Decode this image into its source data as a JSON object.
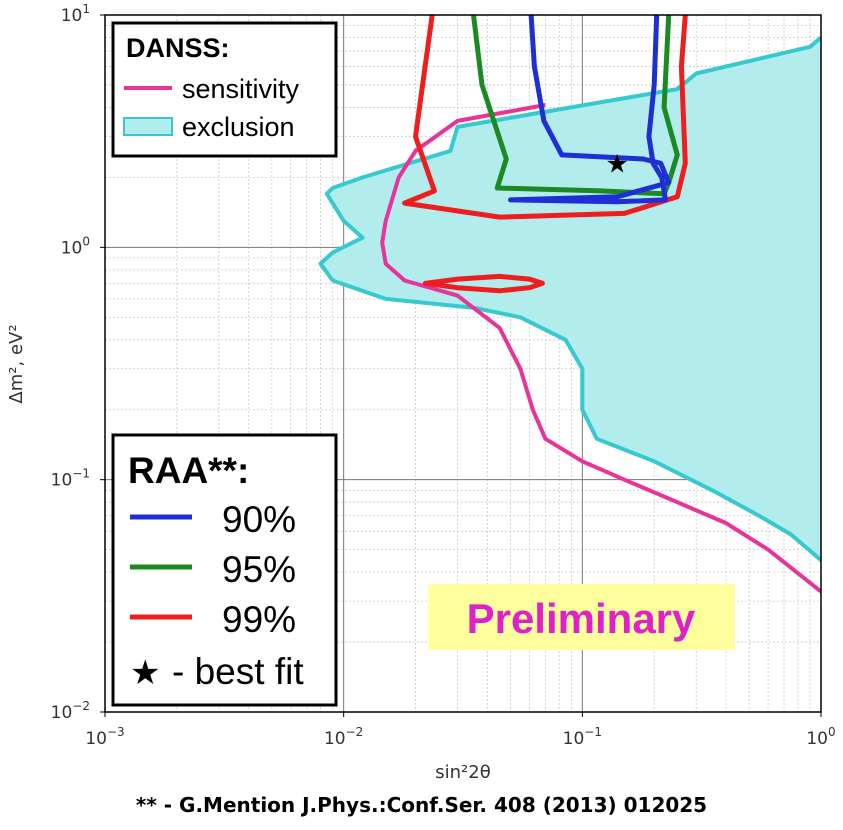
{
  "chart_data": {
    "type": "line",
    "xscale": "log",
    "yscale": "log",
    "xlim": [
      0.001,
      1
    ],
    "ylim": [
      0.01,
      10
    ],
    "xlabel": "sin²2θ",
    "ylabel": "Δm², eV²",
    "x_ticks": [
      {
        "value": 0.001,
        "base": "10",
        "exp": "−3"
      },
      {
        "value": 0.01,
        "base": "10",
        "exp": "−2"
      },
      {
        "value": 0.1,
        "base": "10",
        "exp": "−1"
      },
      {
        "value": 1,
        "base": "10",
        "exp": "0"
      }
    ],
    "y_ticks": [
      {
        "value": 0.01,
        "base": "10",
        "exp": "−2"
      },
      {
        "value": 0.1,
        "base": "10",
        "exp": "−1"
      },
      {
        "value": 1,
        "base": "10",
        "exp": "0"
      },
      {
        "value": 10,
        "base": "10",
        "exp": "1"
      }
    ],
    "grid": true,
    "colors": {
      "sensitivity": "#e8339a",
      "exclusion_line": "#36c9cf",
      "exclusion_fill": "#b2ecec",
      "raa90": "#1f2fd6",
      "raa95": "#1c8a22",
      "raa99": "#ee1e1e",
      "preliminary_bg": "#ffff9e",
      "preliminary_text": "#e020c8"
    },
    "series": [
      {
        "id": "sensitivity",
        "name": "sensitivity",
        "points": [
          [
            0.07,
            4.1
          ],
          [
            0.03,
            3.5
          ],
          [
            0.02,
            2.6
          ],
          [
            0.017,
            2.0
          ],
          [
            0.015,
            1.3
          ],
          [
            0.0145,
            1.05
          ],
          [
            0.015,
            0.85
          ],
          [
            0.018,
            0.72
          ],
          [
            0.03,
            0.62
          ],
          [
            0.045,
            0.45
          ],
          [
            0.055,
            0.3
          ],
          [
            0.062,
            0.2
          ],
          [
            0.07,
            0.15
          ],
          [
            0.1,
            0.12
          ],
          [
            0.15,
            0.1
          ],
          [
            0.25,
            0.08
          ],
          [
            0.4,
            0.065
          ],
          [
            0.6,
            0.05
          ],
          [
            1.0,
            0.033
          ]
        ]
      },
      {
        "id": "exclusion",
        "name": "exclusion",
        "points": [
          [
            1.0,
            8.0
          ],
          [
            0.9,
            7.3
          ],
          [
            0.3,
            5.6
          ],
          [
            0.25,
            4.8
          ],
          [
            0.03,
            3.3
          ],
          [
            0.028,
            2.6
          ],
          [
            0.012,
            2.0
          ],
          [
            0.009,
            1.8
          ],
          [
            0.0085,
            1.7
          ],
          [
            0.01,
            1.3
          ],
          [
            0.012,
            1.1
          ],
          [
            0.009,
            0.95
          ],
          [
            0.008,
            0.85
          ],
          [
            0.009,
            0.72
          ],
          [
            0.015,
            0.6
          ],
          [
            0.035,
            0.55
          ],
          [
            0.055,
            0.5
          ],
          [
            0.085,
            0.4
          ],
          [
            0.1,
            0.3
          ],
          [
            0.1,
            0.2
          ],
          [
            0.115,
            0.15
          ],
          [
            0.2,
            0.12
          ],
          [
            0.35,
            0.09
          ],
          [
            0.55,
            0.07
          ],
          [
            0.75,
            0.058
          ],
          [
            1.0,
            0.045
          ]
        ]
      }
    ],
    "contours": [
      {
        "id": "raa90",
        "name": "90%",
        "points": [
          [
            0.061,
            10.0
          ],
          [
            0.063,
            6.0
          ],
          [
            0.069,
            3.5
          ],
          [
            0.082,
            2.5
          ],
          [
            0.18,
            2.4
          ],
          [
            0.213,
            2.3
          ],
          [
            0.23,
            1.9
          ],
          [
            0.14,
            1.65
          ],
          [
            0.05,
            1.6
          ],
          [
            0.14,
            1.57
          ],
          [
            0.223,
            1.6
          ],
          [
            0.215,
            2.0
          ],
          [
            0.198,
            2.3
          ],
          [
            0.19,
            3.0
          ],
          [
            0.2,
            5.0
          ],
          [
            0.205,
            10.0
          ]
        ]
      },
      {
        "id": "raa95",
        "name": "95%",
        "points": [
          [
            0.035,
            10.0
          ],
          [
            0.038,
            5.0
          ],
          [
            0.048,
            2.4
          ],
          [
            0.044,
            1.8
          ],
          [
            0.12,
            1.75
          ],
          [
            0.22,
            1.7
          ],
          [
            0.23,
            1.9
          ],
          [
            0.25,
            2.5
          ],
          [
            0.22,
            4.0
          ],
          [
            0.23,
            10.0
          ]
        ]
      },
      {
        "id": "raa99",
        "name": "99%",
        "points": [
          [
            0.0235,
            10.0
          ],
          [
            0.02,
            3.0
          ],
          [
            0.024,
            1.75
          ],
          [
            0.018,
            1.55
          ],
          [
            0.045,
            1.35
          ],
          [
            0.15,
            1.4
          ],
          [
            0.25,
            1.65
          ],
          [
            0.27,
            2.3
          ],
          [
            0.26,
            6.0
          ],
          [
            0.27,
            10.0
          ]
        ]
      },
      {
        "id": "raa99b",
        "name": "99%",
        "points": [
          [
            0.022,
            0.7
          ],
          [
            0.03,
            0.67
          ],
          [
            0.045,
            0.65
          ],
          [
            0.06,
            0.67
          ],
          [
            0.068,
            0.7
          ],
          [
            0.06,
            0.73
          ],
          [
            0.045,
            0.75
          ],
          [
            0.03,
            0.73
          ],
          [
            0.022,
            0.7
          ]
        ]
      }
    ],
    "best_fit": {
      "x": 0.14,
      "y": 2.3
    },
    "legend_danss": {
      "title": "DANSS:",
      "items": [
        {
          "label": "sensitivity",
          "kind": "line",
          "color": "#e8339a"
        },
        {
          "label": "exclusion",
          "kind": "patch",
          "color": "#36c9cf"
        }
      ],
      "placement": "top-left"
    },
    "legend_raa": {
      "title": "RAA**:",
      "items": [
        {
          "label": "90%",
          "kind": "line",
          "color": "#1f2fd6"
        },
        {
          "label": "95%",
          "kind": "line",
          "color": "#1c8a22"
        },
        {
          "label": "99%",
          "kind": "line",
          "color": "#ee1e1e"
        },
        {
          "label": "- best fit",
          "kind": "star",
          "color": "#000000"
        }
      ],
      "placement": "bottom-left"
    },
    "annotation": "Preliminary"
  },
  "footnote": "** - G.Mention J.Phys.:Conf.Ser. 408 (2013) 012025"
}
